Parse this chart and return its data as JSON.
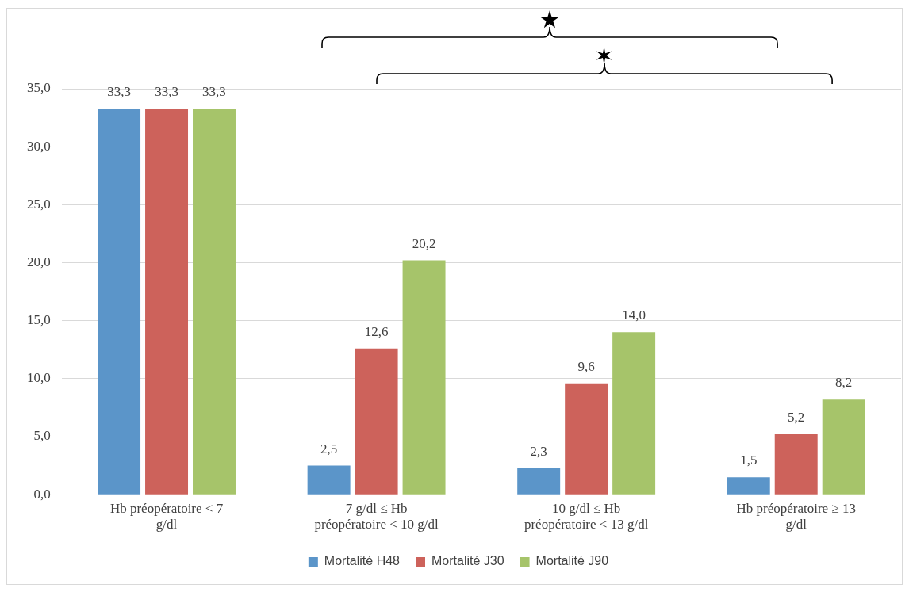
{
  "chart_data": {
    "type": "bar",
    "categories": [
      "Hb préopératoire < 7 g/dl",
      "7 g/dl ≤ Hb préopératoire < 10 g/dl",
      "10 g/dl ≤ Hb préopératoire < 13 g/dl",
      "Hb préopératoire ≥ 13 g/dl"
    ],
    "series": [
      {
        "name": "Mortalité H48",
        "color": "#5b95c9",
        "values": [
          33.3,
          2.5,
          2.3,
          1.5
        ],
        "value_labels": [
          "33,3",
          "2,5",
          "2,3",
          "1,5"
        ]
      },
      {
        "name": "Mortalité J30",
        "color": "#cd625b",
        "values": [
          33.3,
          12.6,
          9.6,
          5.2
        ],
        "value_labels": [
          "33,3",
          "12,6",
          "9,6",
          "5,2"
        ]
      },
      {
        "name": "Mortalité J90",
        "color": "#a6c46a",
        "values": [
          33.3,
          20.2,
          14.0,
          8.2
        ],
        "value_labels": [
          "33,3",
          "20,2",
          "14,0",
          "8,2"
        ]
      }
    ],
    "ylim": [
      0,
      35
    ],
    "yticks": [
      {
        "value": 0,
        "label": "0,0"
      },
      {
        "value": 5,
        "label": "5,0"
      },
      {
        "value": 10,
        "label": "10,0"
      },
      {
        "value": 15,
        "label": "15,0"
      },
      {
        "value": 20,
        "label": "20,0"
      },
      {
        "value": 25,
        "label": "25,0"
      },
      {
        "value": 30,
        "label": "30,0"
      },
      {
        "value": 35,
        "label": "35,0"
      }
    ],
    "grid": "y",
    "legend": "bottom",
    "annotations": [
      "★",
      "✶"
    ]
  }
}
